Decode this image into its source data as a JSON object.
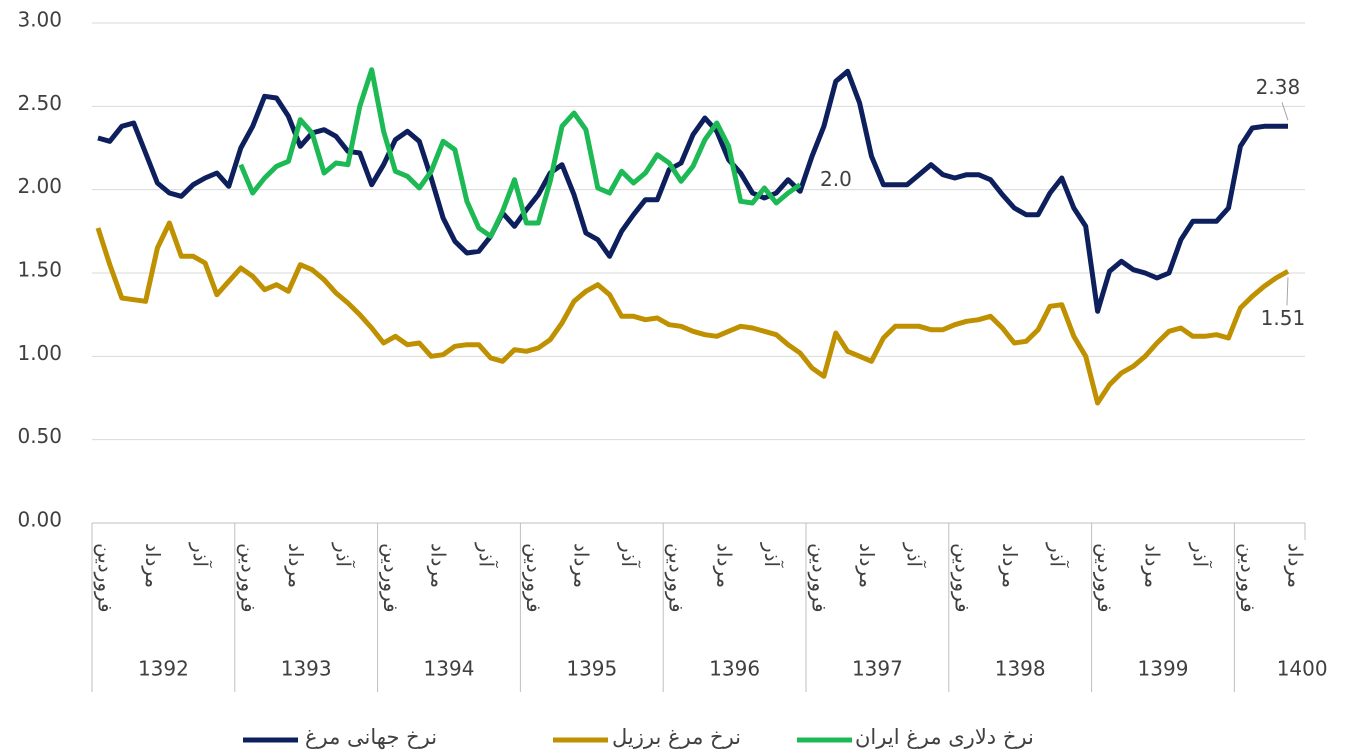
{
  "chart_data": {
    "type": "line",
    "categories": [
      "فروردین",
      null,
      null,
      null,
      "مرداد",
      null,
      null,
      null,
      "آذر",
      null,
      null,
      null,
      "فروردین",
      null,
      null,
      null,
      "مرداد",
      null,
      null,
      null,
      "آذر",
      null,
      null,
      null,
      "فروردین",
      null,
      null,
      null,
      "مرداد",
      null,
      null,
      null,
      "آذر",
      null,
      null,
      null,
      "فروردین",
      null,
      null,
      null,
      "مرداد",
      null,
      null,
      null,
      "آذر",
      null,
      null,
      null,
      "فروردین",
      null,
      null,
      null,
      "مرداد",
      null,
      null,
      null,
      "آذر",
      null,
      null,
      null,
      "فروردین",
      null,
      null,
      null,
      "مرداد",
      null,
      null,
      null,
      "آذر",
      null,
      null,
      null,
      "فروردین",
      null,
      null,
      null,
      "مرداد",
      null,
      null,
      null,
      "آذر",
      null,
      null,
      null,
      "فروردین",
      null,
      null,
      null,
      "مرداد",
      null,
      null,
      null,
      "آذر",
      null,
      null,
      null,
      "فروردین",
      null,
      null,
      null,
      "مرداد"
    ],
    "years": [
      "1392",
      "1393",
      "1394",
      "1395",
      "1396",
      "1397",
      "1398",
      "1399",
      "1400"
    ],
    "ylim": [
      0,
      3
    ],
    "yticks": [
      {
        "value": 0,
        "label": "0.00"
      },
      {
        "value": 0.5,
        "label": "0.50"
      },
      {
        "value": 1,
        "label": "1.00"
      },
      {
        "value": 1.5,
        "label": "1.50"
      },
      {
        "value": 2,
        "label": "2.00"
      },
      {
        "value": 2.5,
        "label": "2.50"
      },
      {
        "value": 3,
        "label": "3.00"
      }
    ],
    "grid": true,
    "legend": "bottom",
    "series": [
      {
        "name": "نرخ جهانی مرغ",
        "color": "#0d1f5c",
        "values": [
          2.31,
          2.29,
          2.38,
          2.4,
          2.22,
          2.04,
          1.98,
          1.96,
          2.03,
          2.07,
          2.1,
          2.02,
          2.25,
          2.38,
          2.56,
          2.55,
          2.44,
          2.26,
          2.34,
          2.36,
          2.32,
          2.23,
          2.22,
          2.03,
          2.15,
          2.3,
          2.35,
          2.29,
          2.07,
          1.83,
          1.69,
          1.62,
          1.63,
          1.72,
          1.86,
          1.78,
          1.88,
          1.97,
          2.1,
          2.15,
          1.97,
          1.74,
          1.7,
          1.6,
          1.75,
          1.85,
          1.94,
          1.94,
          2.12,
          2.16,
          2.33,
          2.43,
          2.35,
          2.18,
          2.1,
          1.98,
          1.95,
          1.98,
          2.06,
          1.99,
          2.2,
          2.38,
          2.65,
          2.71,
          2.52,
          2.2,
          2.03,
          2.03,
          2.03,
          2.09,
          2.15,
          2.09,
          2.07,
          2.09,
          2.09,
          2.06,
          1.97,
          1.89,
          1.85,
          1.85,
          1.98,
          2.07,
          1.89,
          1.78,
          1.27,
          1.51,
          1.57,
          1.52,
          1.5,
          1.47,
          1.5,
          1.7,
          1.81,
          1.81,
          1.81,
          1.89,
          2.26,
          2.37,
          2.38,
          2.38,
          2.38
        ],
        "value_labels": [
          null,
          null,
          null,
          null,
          null,
          null,
          null,
          null,
          null,
          null,
          null,
          null,
          null,
          null,
          null,
          null,
          null,
          null,
          null,
          null,
          null,
          null,
          null,
          null,
          null,
          null,
          null,
          null,
          null,
          null,
          null,
          null,
          null,
          null,
          null,
          null,
          null,
          null,
          null,
          null,
          null,
          null,
          null,
          null,
          null,
          null,
          null,
          null,
          null,
          null,
          null,
          null,
          null,
          null,
          null,
          null,
          null,
          null,
          null,
          null,
          null,
          null,
          null,
          null,
          null,
          null,
          null,
          null,
          null,
          null,
          null,
          null,
          null,
          null,
          null,
          null,
          null,
          null,
          null,
          null,
          null,
          null,
          null,
          null,
          null,
          null,
          null,
          null,
          null,
          null,
          null,
          null,
          null,
          null,
          null,
          null,
          null,
          null,
          null,
          null,
          "2.38"
        ]
      },
      {
        "name": "نرخ مرغ برزیل",
        "color": "#bf9000",
        "values": [
          1.77,
          1.55,
          1.35,
          1.34,
          1.33,
          1.65,
          1.8,
          1.6,
          1.6,
          1.56,
          1.37,
          1.45,
          1.53,
          1.48,
          1.4,
          1.43,
          1.39,
          1.55,
          1.52,
          1.46,
          1.38,
          1.32,
          1.25,
          1.17,
          1.08,
          1.12,
          1.07,
          1.08,
          1.0,
          1.01,
          1.06,
          1.07,
          1.07,
          0.99,
          0.97,
          1.04,
          1.03,
          1.05,
          1.1,
          1.2,
          1.33,
          1.39,
          1.43,
          1.37,
          1.24,
          1.24,
          1.22,
          1.23,
          1.19,
          1.18,
          1.15,
          1.13,
          1.12,
          1.15,
          1.18,
          1.17,
          1.15,
          1.13,
          1.07,
          1.02,
          0.93,
          0.88,
          1.14,
          1.03,
          1.0,
          0.97,
          1.11,
          1.18,
          1.18,
          1.18,
          1.16,
          1.16,
          1.19,
          1.21,
          1.22,
          1.24,
          1.17,
          1.08,
          1.09,
          1.16,
          1.3,
          1.31,
          1.12,
          1.0,
          0.72,
          0.83,
          0.9,
          0.94,
          1.0,
          1.08,
          1.15,
          1.17,
          1.12,
          1.12,
          1.13,
          1.11,
          1.29,
          1.36,
          1.42,
          1.47,
          1.51
        ],
        "value_labels": [
          null,
          null,
          null,
          null,
          null,
          null,
          null,
          null,
          null,
          null,
          null,
          null,
          null,
          null,
          null,
          null,
          null,
          null,
          null,
          null,
          null,
          null,
          null,
          null,
          null,
          null,
          null,
          null,
          null,
          null,
          null,
          null,
          null,
          null,
          null,
          null,
          null,
          null,
          null,
          null,
          null,
          null,
          null,
          null,
          null,
          null,
          null,
          null,
          null,
          null,
          null,
          null,
          null,
          null,
          null,
          null,
          null,
          null,
          null,
          null,
          null,
          null,
          null,
          null,
          null,
          null,
          null,
          null,
          null,
          null,
          null,
          null,
          null,
          null,
          null,
          null,
          null,
          null,
          null,
          null,
          null,
          null,
          null,
          null,
          null,
          null,
          null,
          null,
          null,
          null,
          null,
          null,
          null,
          null,
          null,
          null,
          null,
          null,
          null,
          null,
          "1.51"
        ]
      },
      {
        "name": "نرخ دلاری مرغ ایران",
        "color": "#1db954",
        "values": [
          null,
          null,
          null,
          null,
          null,
          null,
          null,
          null,
          null,
          null,
          null,
          null,
          2.15,
          1.98,
          2.07,
          2.14,
          2.17,
          2.42,
          2.34,
          2.1,
          2.16,
          2.15,
          2.5,
          2.72,
          2.35,
          2.11,
          2.08,
          2.01,
          2.11,
          2.29,
          2.24,
          1.93,
          1.77,
          1.72,
          1.87,
          2.06,
          1.8,
          1.8,
          2.05,
          2.38,
          2.46,
          2.36,
          2.01,
          1.98,
          2.11,
          2.04,
          2.1,
          2.21,
          2.16,
          2.05,
          2.14,
          2.3,
          2.4,
          2.26,
          1.93,
          1.92,
          2.01,
          1.92,
          1.98,
          2.03,
          null,
          null,
          null,
          null,
          null,
          null,
          null,
          null,
          null,
          null,
          null,
          null,
          null,
          null,
          null,
          null,
          null,
          null,
          null,
          null,
          null,
          null,
          null,
          null,
          null,
          null,
          null,
          null,
          null,
          null,
          null,
          null,
          null,
          null,
          null,
          null,
          null,
          null,
          null,
          null,
          null
        ],
        "value_labels": [
          null,
          null,
          null,
          null,
          null,
          null,
          null,
          null,
          null,
          null,
          null,
          null,
          null,
          null,
          null,
          null,
          null,
          null,
          null,
          null,
          null,
          null,
          null,
          null,
          null,
          null,
          null,
          null,
          null,
          null,
          null,
          null,
          null,
          null,
          null,
          null,
          null,
          null,
          null,
          null,
          null,
          null,
          null,
          null,
          null,
          null,
          null,
          null,
          null,
          null,
          null,
          null,
          null,
          null,
          null,
          null,
          null,
          null,
          null,
          "2.0",
          null,
          null,
          null,
          null,
          null,
          null,
          null,
          null,
          null,
          null,
          null,
          null,
          null,
          null,
          null,
          null,
          null,
          null,
          null,
          null,
          null,
          null,
          null,
          null,
          null,
          null,
          null,
          null,
          null,
          null,
          null,
          null,
          null,
          null,
          null,
          null,
          null,
          null,
          null,
          null,
          null
        ]
      }
    ]
  }
}
